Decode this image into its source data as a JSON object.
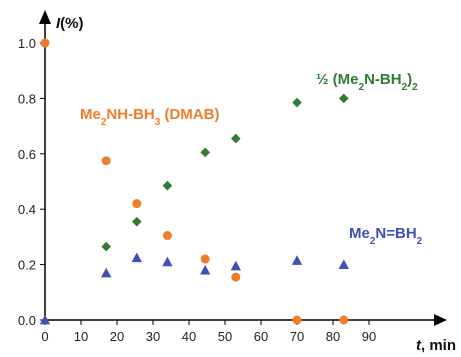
{
  "chart_data": {
    "type": "scatter",
    "title": "",
    "xlabel": "t, min",
    "ylabel": "I(%)",
    "xlim": [
      0,
      97
    ],
    "ylim": [
      0,
      1.1
    ],
    "x_ticks": [
      0,
      10,
      20,
      30,
      40,
      50,
      60,
      70,
      80,
      90
    ],
    "y_ticks": [
      0.0,
      0.2,
      0.4,
      0.6,
      0.8,
      1.0
    ],
    "x_tick_labels": [
      "0",
      "10",
      "20",
      "30",
      "40",
      "50",
      "60",
      "70",
      "80",
      "90"
    ],
    "y_tick_labels": [
      "0.0",
      "0.2",
      "0.4",
      "0.6",
      "0.8",
      "1.0"
    ],
    "grid": false,
    "legend": "inline labels",
    "series": [
      {
        "name": "Me2NH-BH3 (DMAB)",
        "marker": "circle",
        "color": "#F07D2D",
        "points": [
          [
            0,
            1.0
          ],
          [
            17,
            0.575
          ],
          [
            25.5,
            0.42
          ],
          [
            34,
            0.305
          ],
          [
            44.5,
            0.22
          ],
          [
            53,
            0.155
          ],
          [
            70,
            0.0
          ],
          [
            83,
            0.0
          ]
        ]
      },
      {
        "name": "½ (Me2N-BH2)2",
        "marker": "diamond",
        "color": "#2E7D32",
        "points": [
          [
            17,
            0.265
          ],
          [
            25.5,
            0.355
          ],
          [
            34,
            0.485
          ],
          [
            44.5,
            0.605
          ],
          [
            53,
            0.655
          ],
          [
            70,
            0.785
          ],
          [
            83,
            0.8
          ]
        ]
      },
      {
        "name": "Me2N=BH2",
        "marker": "triangle",
        "color": "#3F51B5",
        "points": [
          [
            0,
            0.0
          ],
          [
            17,
            0.17
          ],
          [
            25.5,
            0.225
          ],
          [
            34,
            0.21
          ],
          [
            44.5,
            0.18
          ],
          [
            53,
            0.195
          ],
          [
            70,
            0.215
          ],
          [
            83,
            0.2
          ]
        ]
      }
    ],
    "labels": {
      "dmab": {
        "pre": "Me",
        "s1": "2",
        "mid1": "NH-BH",
        "s2": "3",
        "post": " (DMAB)"
      },
      "dimer": {
        "pre": "½ (Me",
        "s1": "2",
        "mid1": "N-BH",
        "s2": "2",
        "mid2": ")",
        "s3": "2"
      },
      "monomer": {
        "pre": "Me",
        "s1": "2",
        "mid1": "N=BH",
        "s2": "2"
      }
    },
    "axis_titles": {
      "y_main": "I",
      "y_rest": "(%)",
      "x_main": "t",
      "x_rest": ", min"
    }
  }
}
